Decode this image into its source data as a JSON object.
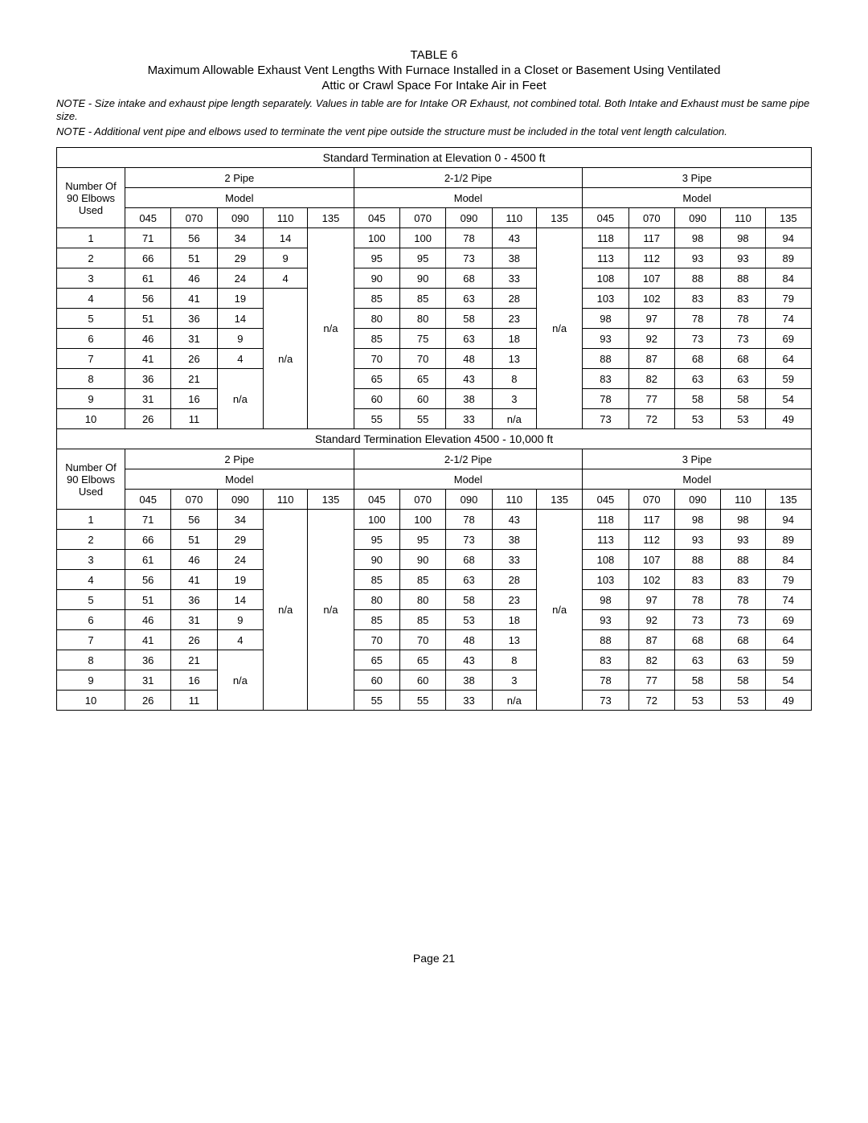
{
  "header": {
    "table_label": "TABLE 6",
    "title_line1": "Maximum Allowable Exhaust Vent Lengths With Furnace Installed in a Closet or Basement Using Ventilated",
    "title_line2": "Attic or Crawl Space For Intake Air in Feet",
    "note1": "NOTE - Size intake and exhaust pipe length separately. Values in table are for Intake OR Exhaust, not combined total. Both Intake and Exhaust must be same pipe size.",
    "note2": "NOTE -  Additional vent pipe and elbows  used to terminate the vent pipe  outside the structure must be included in the total vent length calculation."
  },
  "labels": {
    "number_of": "Number Of",
    "elbows": "90  Elbows",
    "used": "Used",
    "model": "Model",
    "na": "n/a",
    "pipe2": "2  Pipe",
    "pipe25": "2-1/2  Pipe",
    "pipe3": "3  Pipe"
  },
  "section1_title": "Standard Termination at Elevation 0 - 4500 ft",
  "section2_title": "Standard Termination Elevation 4500 - 10,000 ft",
  "models": [
    "045",
    "070",
    "090",
    "110",
    "135"
  ],
  "elbow_counts": [
    "1",
    "2",
    "3",
    "4",
    "5",
    "6",
    "7",
    "8",
    "9",
    "10"
  ],
  "s1": {
    "p2": {
      "045": [
        "71",
        "66",
        "61",
        "56",
        "51",
        "46",
        "41",
        "36",
        "31",
        "26"
      ],
      "070": [
        "56",
        "51",
        "46",
        "41",
        "36",
        "31",
        "26",
        "21",
        "16",
        "11"
      ],
      "090": [
        "34",
        "29",
        "24",
        "19",
        "14",
        "9",
        "4",
        "na",
        "na",
        "na"
      ],
      "110": [
        "14",
        "9",
        "4",
        "na",
        "na",
        "na",
        "na",
        "na",
        "na",
        "na"
      ],
      "135": [
        "na",
        "na",
        "na",
        "na",
        "na",
        "na",
        "na",
        "na",
        "na",
        "na"
      ]
    },
    "p25": {
      "045": [
        "100",
        "95",
        "90",
        "85",
        "80",
        "85",
        "70",
        "65",
        "60",
        "55"
      ],
      "070": [
        "100",
        "95",
        "90",
        "85",
        "80",
        "75",
        "70",
        "65",
        "60",
        "55"
      ],
      "090": [
        "78",
        "73",
        "68",
        "63",
        "58",
        "63",
        "48",
        "43",
        "38",
        "33"
      ],
      "110": [
        "43",
        "38",
        "33",
        "28",
        "23",
        "18",
        "13",
        "8",
        "3",
        "na"
      ],
      "135": [
        "na",
        "na",
        "na",
        "na",
        "na",
        "na",
        "na",
        "na",
        "na",
        "na"
      ]
    },
    "p3": {
      "045": [
        "118",
        "113",
        "108",
        "103",
        "98",
        "93",
        "88",
        "83",
        "78",
        "73"
      ],
      "070": [
        "117",
        "112",
        "107",
        "102",
        "97",
        "92",
        "87",
        "82",
        "77",
        "72"
      ],
      "090": [
        "98",
        "93",
        "88",
        "83",
        "78",
        "73",
        "68",
        "63",
        "58",
        "53"
      ],
      "110": [
        "98",
        "93",
        "88",
        "83",
        "78",
        "73",
        "68",
        "63",
        "58",
        "53"
      ],
      "135": [
        "94",
        "89",
        "84",
        "79",
        "74",
        "69",
        "64",
        "59",
        "54",
        "49"
      ]
    }
  },
  "s2": {
    "p2": {
      "045": [
        "71",
        "66",
        "61",
        "56",
        "51",
        "46",
        "41",
        "36",
        "31",
        "26"
      ],
      "070": [
        "56",
        "51",
        "46",
        "41",
        "36",
        "31",
        "26",
        "21",
        "16",
        "11"
      ],
      "090": [
        "34",
        "29",
        "24",
        "19",
        "14",
        "9",
        "4",
        "na",
        "na",
        "na"
      ],
      "110": [
        "na",
        "na",
        "na",
        "na",
        "na",
        "na",
        "na",
        "na",
        "na",
        "na"
      ],
      "135": [
        "na",
        "na",
        "na",
        "na",
        "na",
        "na",
        "na",
        "na",
        "na",
        "na"
      ]
    },
    "p25": {
      "045": [
        "100",
        "95",
        "90",
        "85",
        "80",
        "85",
        "70",
        "65",
        "60",
        "55"
      ],
      "070": [
        "100",
        "95",
        "90",
        "85",
        "80",
        "85",
        "70",
        "65",
        "60",
        "55"
      ],
      "090": [
        "78",
        "73",
        "68",
        "63",
        "58",
        "53",
        "48",
        "43",
        "38",
        "33"
      ],
      "110": [
        "43",
        "38",
        "33",
        "28",
        "23",
        "18",
        "13",
        "8",
        "3",
        "na"
      ],
      "135": [
        "na",
        "na",
        "na",
        "na",
        "na",
        "na",
        "na",
        "na",
        "na",
        "na"
      ]
    },
    "p3": {
      "045": [
        "118",
        "113",
        "108",
        "103",
        "98",
        "93",
        "88",
        "83",
        "78",
        "73"
      ],
      "070": [
        "117",
        "112",
        "107",
        "102",
        "97",
        "92",
        "87",
        "82",
        "77",
        "72"
      ],
      "090": [
        "98",
        "93",
        "88",
        "83",
        "78",
        "73",
        "68",
        "63",
        "58",
        "53"
      ],
      "110": [
        "98",
        "93",
        "88",
        "83",
        "78",
        "73",
        "68",
        "63",
        "58",
        "53"
      ],
      "135": [
        "94",
        "89",
        "84",
        "79",
        "74",
        "69",
        "64",
        "59",
        "54",
        "49"
      ]
    }
  },
  "footer": "Page 21"
}
